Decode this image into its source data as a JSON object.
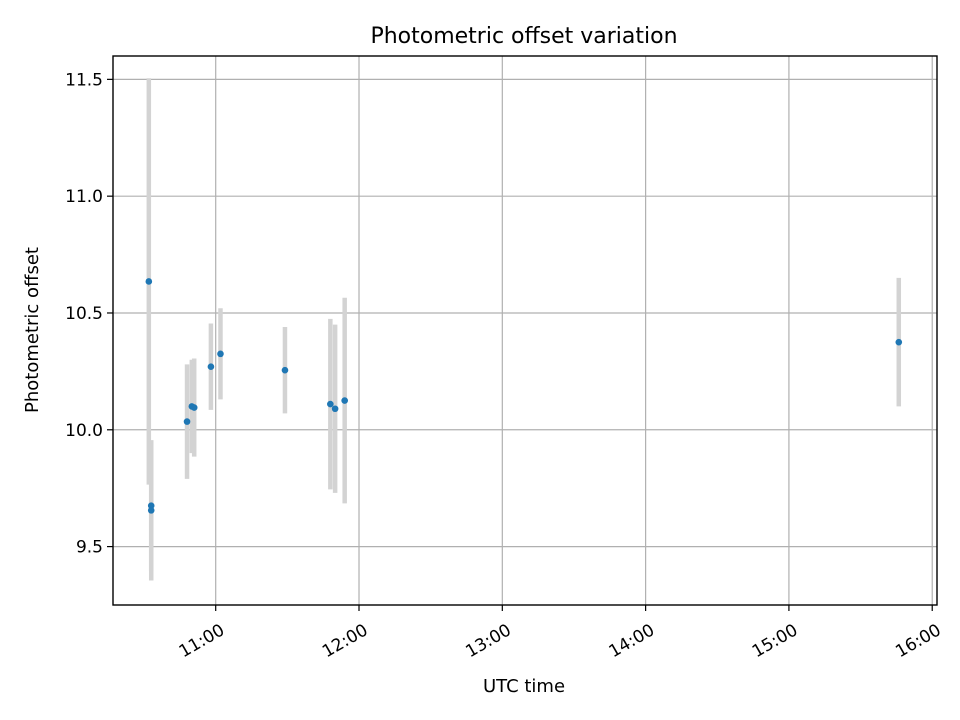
{
  "chart_data": {
    "type": "scatter",
    "title": "Photometric offset variation",
    "xlabel": "UTC time",
    "ylabel": "Photometric offset",
    "x_axis": {
      "kind": "time",
      "range": [
        "10:17",
        "16:02"
      ],
      "ticks": [
        "11:00",
        "12:00",
        "13:00",
        "14:00",
        "15:00",
        "16:00"
      ]
    },
    "y_axis": {
      "range": [
        9.25,
        11.6
      ],
      "ticks": [
        "9.5",
        "10.0",
        "10.5",
        "11.0",
        "11.5"
      ]
    },
    "grid": true,
    "colors": {
      "point": "#1f77b4",
      "errorbar": "#d3d3d3"
    },
    "series": [
      {
        "points": [
          {
            "x": "10:32",
            "y": 10.635,
            "err": 0.87
          },
          {
            "x": "10:33",
            "y": 9.675,
            "err": 0.28
          },
          {
            "x": "10:33",
            "y": 9.655,
            "err": 0.3
          },
          {
            "x": "10:48",
            "y": 10.035,
            "err": 0.245
          },
          {
            "x": "10:50",
            "y": 10.1,
            "err": 0.2
          },
          {
            "x": "10:51",
            "y": 10.095,
            "err": 0.21
          },
          {
            "x": "10:58",
            "y": 10.27,
            "err": 0.185
          },
          {
            "x": "11:02",
            "y": 10.325,
            "err": 0.195
          },
          {
            "x": "11:29",
            "y": 10.255,
            "err": 0.185
          },
          {
            "x": "11:48",
            "y": 10.11,
            "err": 0.365
          },
          {
            "x": "11:50",
            "y": 10.09,
            "err": 0.36
          },
          {
            "x": "11:54",
            "y": 10.125,
            "err": 0.44
          },
          {
            "x": "15:46",
            "y": 10.375,
            "err": 0.275
          }
        ]
      }
    ]
  }
}
